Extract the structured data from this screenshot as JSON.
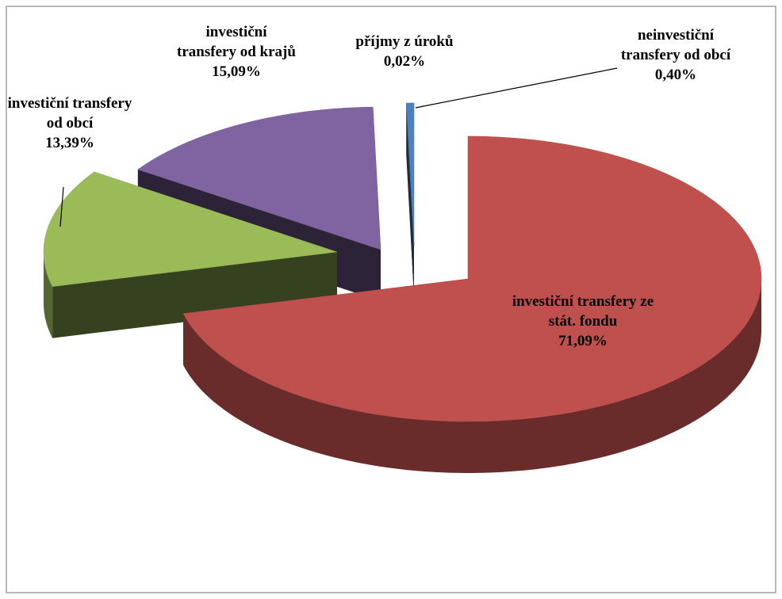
{
  "chart_data": {
    "type": "pie",
    "categories": [
      "investiční transfery ze stát. fondu",
      "investiční transfery od obcí",
      "investiční transfery od krajů",
      "příjmy z úroků",
      "neinvestiční transfery od obcí"
    ],
    "values": [
      71.09,
      13.39,
      15.09,
      0.02,
      0.4
    ],
    "value_labels": [
      "71,09%",
      "13,39%",
      "15,09%",
      "0,02%",
      "0,40%"
    ],
    "colors": [
      "#c0504d",
      "#9bbb59",
      "#8064a2",
      "#4f81bd",
      "#4f81bd"
    ]
  }
}
